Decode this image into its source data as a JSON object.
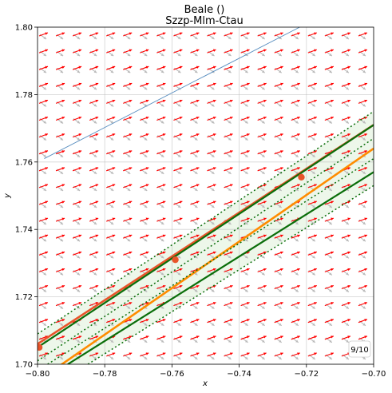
{
  "chart_data": {
    "type": "line",
    "title": "Beale ()",
    "subtitle": "Szzp-Mlm-Ctau",
    "xlabel": "x",
    "ylabel": "y",
    "xlim": [
      -0.8,
      -0.7
    ],
    "ylim": [
      1.7,
      1.8
    ],
    "x_ticks": [
      "−0.80",
      "−0.78",
      "−0.76",
      "−0.74",
      "−0.72",
      "−0.70"
    ],
    "y_ticks": [
      "1.70",
      "1.72",
      "1.74",
      "1.76",
      "1.78",
      "1.80"
    ],
    "grid": true,
    "badge": "9/10",
    "colors": {
      "quiver_current": "#ff0000",
      "quiver_previous": "#bbbbbb",
      "trajectory": "#5a8fc0",
      "orange_dark": "#e8542a",
      "orange": "#ff8c00",
      "green": "#0a6e0a",
      "band": "#dff0d8"
    },
    "series": [
      {
        "style": "thin-blue",
        "x": [
          -0.798,
          -0.722
        ],
        "y": [
          1.761,
          1.8
        ]
      },
      {
        "style": "orange-dark",
        "x": [
          -0.8,
          -0.7
        ],
        "y": [
          1.706,
          1.771
        ]
      },
      {
        "style": "orange",
        "x": [
          -0.8,
          -0.7
        ],
        "y": [
          1.695,
          1.764
        ]
      },
      {
        "style": "green",
        "x": [
          -0.8,
          -0.7
        ],
        "y": [
          1.705,
          1.771
        ]
      },
      {
        "style": "green",
        "x": [
          -0.791,
          -0.7
        ],
        "y": [
          1.7,
          1.757
        ]
      },
      {
        "style": "green-dotted",
        "x": [
          -0.8,
          -0.7
        ],
        "y": [
          1.709,
          1.775
        ]
      },
      {
        "style": "green-dotted",
        "x": [
          -0.8,
          -0.7
        ],
        "y": [
          1.701,
          1.767
        ]
      },
      {
        "style": "green-dotted",
        "x": [
          -0.785,
          -0.7
        ],
        "y": [
          1.7,
          1.753
        ]
      },
      {
        "style": "green-dotted",
        "x": [
          -0.797,
          -0.7
        ],
        "y": [
          1.7,
          1.761
        ]
      }
    ],
    "points": [
      {
        "x": -0.759,
        "y": 1.731
      },
      {
        "x": -0.7215,
        "y": 1.7555
      },
      {
        "x": -0.7995,
        "y": 1.705
      }
    ]
  }
}
